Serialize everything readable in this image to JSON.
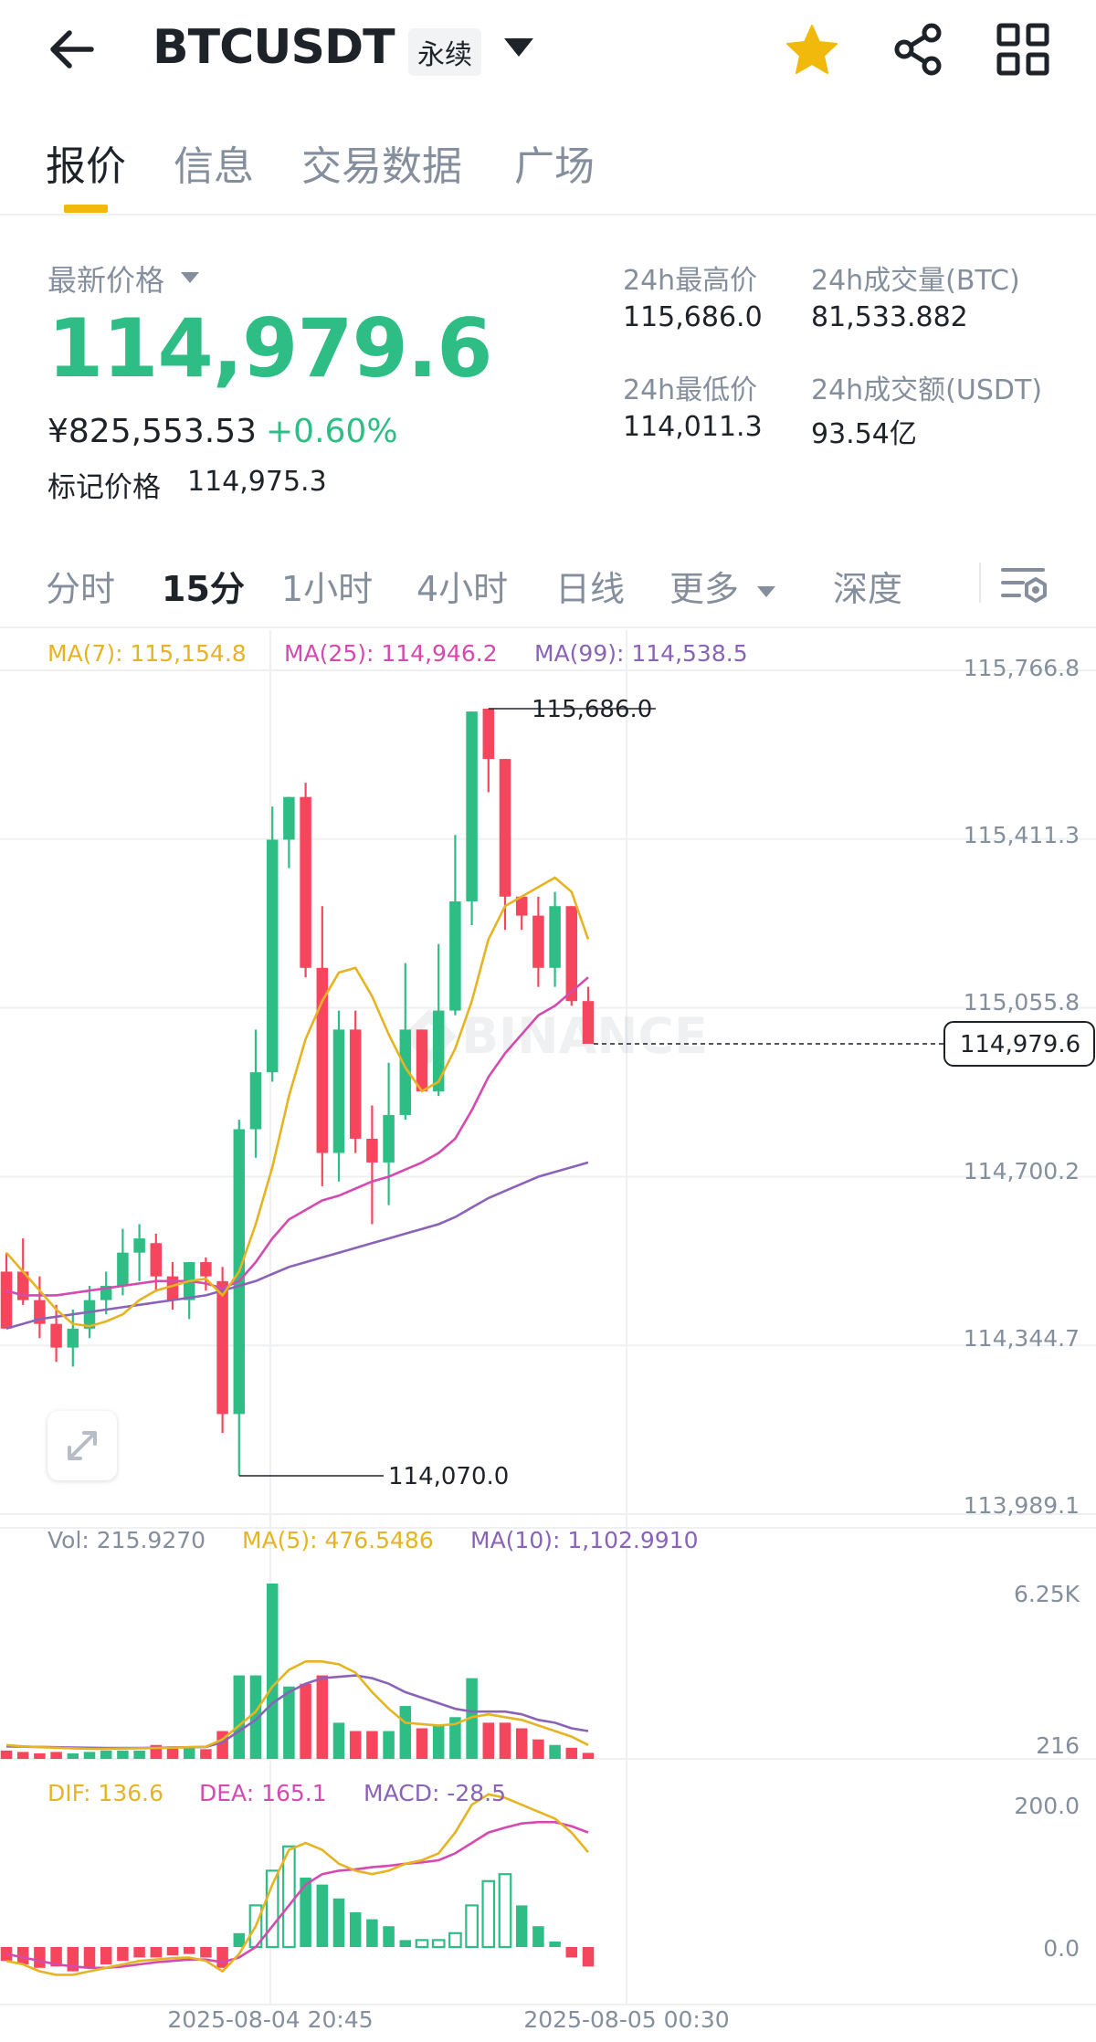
{
  "header": {
    "symbol": "BTCUSDT",
    "contract_type": "永续",
    "icons": [
      "back-arrow-icon",
      "chevron-down-icon",
      "star-icon",
      "share-icon",
      "grid-icon"
    ]
  },
  "main_tabs": [
    "报价",
    "信息",
    "交易数据",
    "广场"
  ],
  "price": {
    "last_label": "最新价格",
    "last": "114,979.6",
    "cny": "¥825,553.53",
    "change": "+0.60%",
    "mark_label": "标记价格",
    "mark": "114,975.3"
  },
  "stats": {
    "high_label": "24h最高价",
    "high": "115,686.0",
    "low_label": "24h最低价",
    "low": "114,011.3",
    "vol_btc_label": "24h成交量(BTC)",
    "vol_btc": "81,533.882",
    "vol_usdt_label": "24h成交额(USDT)",
    "vol_usdt": "93.54亿"
  },
  "interval_tabs": [
    "分时",
    "15分",
    "1小时",
    "4小时",
    "日线",
    "更多",
    "深度"
  ],
  "colors": {
    "up": "#2ebd85",
    "down": "#f6465d",
    "accent": "#f0b90b",
    "ma7": "#e6b422",
    "ma25": "#d54ab0",
    "ma99": "#8a63b8"
  },
  "chart_data": {
    "type": "candlestick",
    "interval": "15分",
    "ma_legend": {
      "ma7": "MA(7): 115,154.8",
      "ma25": "MA(25): 114,946.2",
      "ma99": "MA(99): 114,538.5"
    },
    "y_ticks": [
      "115,766.8",
      "115,411.3",
      "115,055.8",
      "114,700.2",
      "114,344.7",
      "113,989.1"
    ],
    "ylim": [
      113989.1,
      115766.8
    ],
    "current_price": "114,979.6",
    "high_marker": "115,686.0",
    "low_marker": "114,070.0",
    "x_labels": [
      "2025-08-04 20:45",
      "2025-08-05 00:30"
    ],
    "candles": [
      {
        "o": 114500,
        "h": 114540,
        "l": 114395,
        "c": 114380
      },
      {
        "o": 114500,
        "h": 114570,
        "l": 114430,
        "c": 114440
      },
      {
        "o": 114440,
        "h": 114490,
        "l": 114360,
        "c": 114390
      },
      {
        "o": 114390,
        "h": 114430,
        "l": 114310,
        "c": 114340
      },
      {
        "o": 114340,
        "h": 114420,
        "l": 114300,
        "c": 114380
      },
      {
        "o": 114380,
        "h": 114470,
        "l": 114360,
        "c": 114440
      },
      {
        "o": 114440,
        "h": 114500,
        "l": 114410,
        "c": 114470
      },
      {
        "o": 114470,
        "h": 114590,
        "l": 114450,
        "c": 114540
      },
      {
        "o": 114540,
        "h": 114600,
        "l": 114480,
        "c": 114570
      },
      {
        "o": 114560,
        "h": 114580,
        "l": 114460,
        "c": 114490
      },
      {
        "o": 114490,
        "h": 114520,
        "l": 114420,
        "c": 114440
      },
      {
        "o": 114440,
        "h": 114520,
        "l": 114400,
        "c": 114520
      },
      {
        "o": 114520,
        "h": 114530,
        "l": 114460,
        "c": 114490
      },
      {
        "o": 114480,
        "h": 114510,
        "l": 114160,
        "c": 114200
      },
      {
        "o": 114200,
        "h": 114820,
        "l": 114070,
        "c": 114800
      },
      {
        "o": 114800,
        "h": 115010,
        "l": 114740,
        "c": 114920
      },
      {
        "o": 114920,
        "h": 115480,
        "l": 114900,
        "c": 115410
      },
      {
        "o": 115410,
        "h": 115500,
        "l": 115350,
        "c": 115500
      },
      {
        "o": 115500,
        "h": 115530,
        "l": 115120,
        "c": 115140
      },
      {
        "o": 115140,
        "h": 115270,
        "l": 114680,
        "c": 114750
      },
      {
        "o": 114750,
        "h": 115050,
        "l": 114690,
        "c": 115010
      },
      {
        "o": 115010,
        "h": 115050,
        "l": 114750,
        "c": 114780
      },
      {
        "o": 114780,
        "h": 114850,
        "l": 114600,
        "c": 114730
      },
      {
        "o": 114730,
        "h": 114940,
        "l": 114640,
        "c": 114830
      },
      {
        "o": 114830,
        "h": 115150,
        "l": 114820,
        "c": 115010
      },
      {
        "o": 115010,
        "h": 115010,
        "l": 114890,
        "c": 114880
      },
      {
        "o": 114880,
        "h": 115190,
        "l": 114870,
        "c": 115050
      },
      {
        "o": 115050,
        "h": 115420,
        "l": 115040,
        "c": 115280
      },
      {
        "o": 115280,
        "h": 115680,
        "l": 115230,
        "c": 115680
      },
      {
        "o": 115686,
        "h": 115686,
        "l": 115510,
        "c": 115580
      },
      {
        "o": 115580,
        "h": 115580,
        "l": 115220,
        "c": 115290
      },
      {
        "o": 115290,
        "h": 115290,
        "l": 115220,
        "c": 115250
      },
      {
        "o": 115250,
        "h": 115290,
        "l": 115100,
        "c": 115140
      },
      {
        "o": 115140,
        "h": 115300,
        "l": 115100,
        "c": 115270
      },
      {
        "o": 115270,
        "h": 115270,
        "l": 115060,
        "c": 115070
      },
      {
        "o": 115070,
        "h": 115100,
        "l": 114990,
        "c": 114980
      }
    ],
    "ma7_line": [
      114540,
      114500,
      114460,
      114420,
      114390,
      114385,
      114395,
      114410,
      114440,
      114460,
      114470,
      114480,
      114485,
      114450,
      114500,
      114600,
      114720,
      114870,
      114990,
      115070,
      115130,
      115140,
      115080,
      115000,
      114930,
      114880,
      114900,
      114970,
      115070,
      115200,
      115270,
      115290,
      115310,
      115330,
      115300,
      115200
    ],
    "ma25_line": [
      114460,
      114450,
      114450,
      114450,
      114455,
      114460,
      114465,
      114470,
      114475,
      114480,
      114480,
      114480,
      114475,
      114465,
      114480,
      114520,
      114570,
      114610,
      114630,
      114650,
      114660,
      114675,
      114690,
      114700,
      114715,
      114730,
      114750,
      114780,
      114840,
      114910,
      114960,
      115000,
      115040,
      115060,
      115090,
      115120
    ],
    "ma99_line": [
      114380,
      114390,
      114400,
      114405,
      114410,
      114415,
      114420,
      114425,
      114430,
      114435,
      114440,
      114445,
      114450,
      114460,
      114470,
      114480,
      114495,
      114510,
      114520,
      114530,
      114540,
      114550,
      114560,
      114570,
      114580,
      114590,
      114600,
      114615,
      114635,
      114655,
      114670,
      114685,
      114700,
      114710,
      114720,
      114730
    ],
    "volume": {
      "legend_vol": "Vol: 215.9270",
      "legend_ma5": "MA(5): 476.5486",
      "legend_ma10": "MA(10): 1,102.9910",
      "y_ticks": [
        "6.25K",
        "216"
      ],
      "values": [
        300,
        250,
        200,
        250,
        200,
        250,
        300,
        300,
        300,
        500,
        450,
        450,
        350,
        1000,
        3000,
        3000,
        6300,
        2600,
        2700,
        3000,
        1300,
        1000,
        1000,
        1000,
        1900,
        1100,
        1200,
        1500,
        2900,
        1300,
        1300,
        1100,
        700,
        500,
        400,
        216
      ],
      "ma5": [
        500,
        450,
        420,
        400,
        380,
        360,
        360,
        370,
        380,
        390,
        400,
        420,
        440,
        700,
        1200,
        1700,
        2600,
        3200,
        3500,
        3500,
        3400,
        3100,
        2400,
        1800,
        1300,
        1250,
        1200,
        1250,
        1500,
        1600,
        1500,
        1400,
        1200,
        1000,
        800,
        500
      ],
      "ma10": [
        450,
        440,
        430,
        420,
        410,
        400,
        390,
        390,
        390,
        400,
        410,
        420,
        430,
        600,
        1000,
        1400,
        2000,
        2400,
        2700,
        2900,
        2950,
        3000,
        2900,
        2700,
        2400,
        2200,
        2000,
        1800,
        1700,
        1700,
        1700,
        1600,
        1400,
        1300,
        1100,
        1000
      ]
    },
    "macd": {
      "legend_dif": "DIF: 136.6",
      "legend_dea": "DEA: 165.1",
      "legend_macd": "MACD: -28.5",
      "y_ticks": [
        "200.0",
        "0.0"
      ],
      "histogram": [
        -20,
        -25,
        -30,
        -28,
        -35,
        -30,
        -25,
        -20,
        -15,
        -15,
        -12,
        -10,
        -15,
        -30,
        20,
        60,
        110,
        145,
        100,
        90,
        70,
        50,
        40,
        30,
        10,
        10,
        10,
        20,
        60,
        95,
        105,
        60,
        30,
        8,
        -15,
        -28
      ],
      "dif": [
        -20,
        -25,
        -35,
        -40,
        -40,
        -35,
        -30,
        -25,
        -20,
        -18,
        -16,
        -15,
        -20,
        -35,
        -10,
        30,
        90,
        140,
        150,
        140,
        120,
        110,
        105,
        110,
        120,
        125,
        135,
        165,
        205,
        220,
        215,
        205,
        195,
        185,
        165,
        136.6
      ],
      "dea": [
        -10,
        -15,
        -20,
        -25,
        -28,
        -30,
        -30,
        -28,
        -25,
        -22,
        -20,
        -18,
        -18,
        -22,
        -15,
        0,
        30,
        60,
        90,
        105,
        110,
        112,
        115,
        117,
        120,
        122,
        125,
        135,
        150,
        165,
        172,
        178,
        180,
        180,
        174,
        165.1
      ]
    }
  }
}
